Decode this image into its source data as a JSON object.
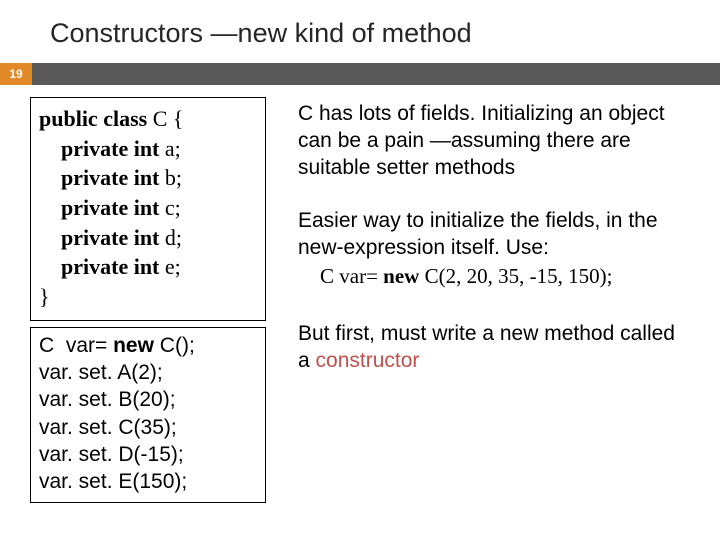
{
  "title": "Constructors —new kind of method",
  "page_number": "19",
  "code_class": {
    "l1": "public class",
    "l1b": " C {",
    "l2a": "    ",
    "l2k": "private int",
    "l2b": " a;",
    "l3a": "    ",
    "l3k": "private int",
    "l3b": " b;",
    "l4a": "    ",
    "l4k": "private int",
    "l4b": " c;",
    "l5a": "    ",
    "l5k": "private int",
    "l5b": " d;",
    "l6a": "    ",
    "l6k": "private int",
    "l6b": " e;",
    "l7": "}"
  },
  "code_call": {
    "l1a": "C  var= ",
    "l1b": "new ",
    "l1c": "C();",
    "l2": "var. set. A(2);",
    "l3": "var. set. B(20);",
    "l4": "var. set. C(35);",
    "l5": "var. set. D(-15);",
    "l6": "var. set. E(150);"
  },
  "para1": "C has lots of fields. Initializing an object can be a pain —assuming there are suitable setter methods",
  "para2": "Easier way to initialize the fields, in the new-expression itself. Use:",
  "expr": {
    "a": "C var= ",
    "b": "new",
    "c": " C(2, 20, 35, -15, 150);"
  },
  "para3a": "But first, must write a new method called a ",
  "para3b": "constructor",
  "colors": {
    "accent": "#e38a28",
    "bar": "#595959",
    "highlight": "#c0504d"
  }
}
